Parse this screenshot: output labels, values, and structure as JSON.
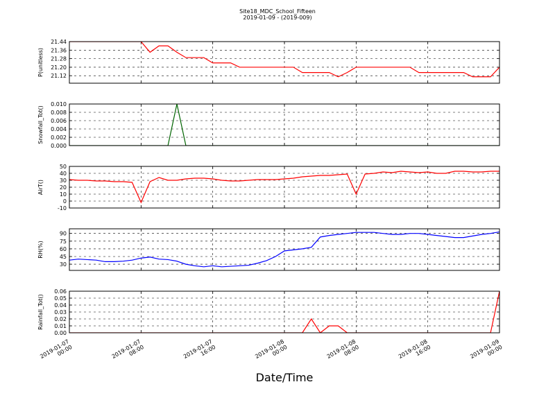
{
  "chart_data": [
    {
      "type": "line",
      "title": "Site18_MDC_School_Fifteen",
      "subtitle": "2019-01-09 - (2019-009)",
      "ylabel": "P(unitless)",
      "color": "#ff0000",
      "x": [
        "2019-01-07 00:00",
        "2019-01-07 01:00",
        "2019-01-07 02:00",
        "2019-01-07 03:00",
        "2019-01-07 04:00",
        "2019-01-07 05:00",
        "2019-01-07 06:00",
        "2019-01-07 07:00",
        "2019-01-07 08:00",
        "2019-01-07 09:00",
        "2019-01-07 10:00",
        "2019-01-07 11:00",
        "2019-01-07 12:00",
        "2019-01-07 13:00",
        "2019-01-07 14:00",
        "2019-01-07 15:00",
        "2019-01-07 16:00",
        "2019-01-07 17:00",
        "2019-01-07 18:00",
        "2019-01-07 19:00",
        "2019-01-07 20:00",
        "2019-01-07 21:00",
        "2019-01-07 22:00",
        "2019-01-07 23:00",
        "2019-01-08 00:00",
        "2019-01-08 01:00",
        "2019-01-08 02:00",
        "2019-01-08 03:00",
        "2019-01-08 04:00",
        "2019-01-08 05:00",
        "2019-01-08 06:00",
        "2019-01-08 07:00",
        "2019-01-08 08:00",
        "2019-01-08 09:00",
        "2019-01-08 10:00",
        "2019-01-08 11:00",
        "2019-01-08 12:00",
        "2019-01-08 13:00",
        "2019-01-08 14:00",
        "2019-01-08 15:00",
        "2019-01-08 16:00",
        "2019-01-08 17:00",
        "2019-01-08 18:00",
        "2019-01-08 19:00",
        "2019-01-08 20:00",
        "2019-01-08 21:00",
        "2019-01-08 22:00",
        "2019-01-08 23:00",
        "2019-01-09 00:00"
      ],
      "values": [
        21.44,
        21.44,
        21.44,
        21.44,
        21.44,
        21.44,
        21.44,
        21.44,
        21.44,
        21.34,
        21.4,
        21.4,
        21.34,
        21.29,
        21.29,
        21.29,
        21.24,
        21.24,
        21.24,
        21.2,
        21.2,
        21.2,
        21.2,
        21.2,
        21.2,
        21.2,
        21.15,
        21.15,
        21.15,
        21.15,
        21.11,
        21.15,
        21.2,
        21.2,
        21.2,
        21.2,
        21.2,
        21.2,
        21.2,
        21.15,
        21.15,
        21.15,
        21.15,
        21.15,
        21.15,
        21.11,
        21.11,
        21.11,
        21.2
      ],
      "ylim": [
        21.05,
        21.44
      ],
      "yticks": [
        21.12,
        {
          "value": 21.2,
          "label": "21.20"
        },
        21.28,
        21.36,
        21.44
      ],
      "grid": true
    },
    {
      "type": "line",
      "ylabel": "Snowfall_Tot()",
      "color": "#006400",
      "x": [
        "2019-01-07 00:00",
        "2019-01-07 01:00",
        "2019-01-07 02:00",
        "2019-01-07 03:00",
        "2019-01-07 04:00",
        "2019-01-07 05:00",
        "2019-01-07 06:00",
        "2019-01-07 07:00",
        "2019-01-07 08:00",
        "2019-01-07 09:00",
        "2019-01-07 10:00",
        "2019-01-07 11:00",
        "2019-01-07 12:00",
        "2019-01-07 13:00",
        "2019-01-07 14:00",
        "2019-01-07 15:00",
        "2019-01-07 16:00",
        "2019-01-07 17:00",
        "2019-01-07 18:00",
        "2019-01-07 19:00",
        "2019-01-07 20:00",
        "2019-01-07 21:00",
        "2019-01-07 22:00",
        "2019-01-07 23:00",
        "2019-01-08 00:00",
        "2019-01-08 01:00",
        "2019-01-08 02:00",
        "2019-01-08 03:00",
        "2019-01-08 04:00",
        "2019-01-08 05:00",
        "2019-01-08 06:00",
        "2019-01-08 07:00",
        "2019-01-08 08:00",
        "2019-01-08 09:00",
        "2019-01-08 10:00",
        "2019-01-08 11:00",
        "2019-01-08 12:00",
        "2019-01-08 13:00",
        "2019-01-08 14:00",
        "2019-01-08 15:00",
        "2019-01-08 16:00",
        "2019-01-08 17:00",
        "2019-01-08 18:00",
        "2019-01-08 19:00",
        "2019-01-08 20:00",
        "2019-01-08 21:00",
        "2019-01-08 22:00",
        "2019-01-08 23:00",
        "2019-01-09 00:00"
      ],
      "values": [
        0,
        0,
        0,
        0,
        0,
        0,
        0,
        0,
        0,
        0,
        0,
        0,
        0.01,
        0,
        0,
        0,
        0,
        0,
        0,
        0,
        0,
        0,
        0,
        0,
        0,
        0,
        0,
        0,
        0,
        0,
        0,
        0,
        0,
        0,
        0,
        0,
        0,
        0,
        0,
        0,
        0,
        0,
        0,
        0,
        0,
        0,
        0,
        0,
        0
      ],
      "ylim": [
        0,
        0.01
      ],
      "yticks": [
        {
          "value": 0,
          "label": "0.000"
        },
        0.002,
        0.004,
        0.006,
        0.008,
        {
          "value": 0.01,
          "label": "0.010"
        }
      ],
      "grid": true
    },
    {
      "type": "line",
      "ylabel": "AirT()",
      "color": "#ff0000",
      "x": [
        "2019-01-07 00:00",
        "2019-01-07 01:00",
        "2019-01-07 02:00",
        "2019-01-07 03:00",
        "2019-01-07 04:00",
        "2019-01-07 05:00",
        "2019-01-07 06:00",
        "2019-01-07 07:00",
        "2019-01-07 08:00",
        "2019-01-07 09:00",
        "2019-01-07 10:00",
        "2019-01-07 11:00",
        "2019-01-07 12:00",
        "2019-01-07 13:00",
        "2019-01-07 14:00",
        "2019-01-07 15:00",
        "2019-01-07 16:00",
        "2019-01-07 17:00",
        "2019-01-07 18:00",
        "2019-01-07 19:00",
        "2019-01-07 20:00",
        "2019-01-07 21:00",
        "2019-01-07 22:00",
        "2019-01-07 23:00",
        "2019-01-08 00:00",
        "2019-01-08 01:00",
        "2019-01-08 02:00",
        "2019-01-08 03:00",
        "2019-01-08 04:00",
        "2019-01-08 05:00",
        "2019-01-08 06:00",
        "2019-01-08 07:00",
        "2019-01-08 08:00",
        "2019-01-08 09:00",
        "2019-01-08 10:00",
        "2019-01-08 11:00",
        "2019-01-08 12:00",
        "2019-01-08 13:00",
        "2019-01-08 14:00",
        "2019-01-08 15:00",
        "2019-01-08 16:00",
        "2019-01-08 17:00",
        "2019-01-08 18:00",
        "2019-01-08 19:00",
        "2019-01-08 20:00",
        "2019-01-08 21:00",
        "2019-01-08 22:00",
        "2019-01-08 23:00",
        "2019-01-09 00:00"
      ],
      "values": [
        31,
        30,
        30,
        29,
        29,
        28,
        28,
        27,
        -2,
        28,
        34,
        30,
        30,
        32,
        33,
        33,
        32,
        30,
        29,
        29,
        30,
        31,
        31,
        31,
        32,
        33,
        35,
        36,
        37,
        37,
        38,
        39,
        10,
        39,
        40,
        42,
        41,
        43,
        42,
        41,
        42,
        40,
        40,
        43,
        43,
        42,
        42,
        43,
        43
      ],
      "ylim": [
        -10,
        50
      ],
      "yticks": [
        -10,
        0,
        10,
        20,
        30,
        40,
        50
      ],
      "grid": true
    },
    {
      "type": "line",
      "ylabel": "RH(%)",
      "color": "#0000ff",
      "x": [
        "2019-01-07 00:00",
        "2019-01-07 01:00",
        "2019-01-07 02:00",
        "2019-01-07 03:00",
        "2019-01-07 04:00",
        "2019-01-07 05:00",
        "2019-01-07 06:00",
        "2019-01-07 07:00",
        "2019-01-07 08:00",
        "2019-01-07 09:00",
        "2019-01-07 10:00",
        "2019-01-07 11:00",
        "2019-01-07 12:00",
        "2019-01-07 13:00",
        "2019-01-07 14:00",
        "2019-01-07 15:00",
        "2019-01-07 16:00",
        "2019-01-07 17:00",
        "2019-01-07 18:00",
        "2019-01-07 19:00",
        "2019-01-07 20:00",
        "2019-01-07 21:00",
        "2019-01-07 22:00",
        "2019-01-07 23:00",
        "2019-01-08 00:00",
        "2019-01-08 01:00",
        "2019-01-08 02:00",
        "2019-01-08 03:00",
        "2019-01-08 04:00",
        "2019-01-08 05:00",
        "2019-01-08 06:00",
        "2019-01-08 07:00",
        "2019-01-08 08:00",
        "2019-01-08 09:00",
        "2019-01-08 10:00",
        "2019-01-08 11:00",
        "2019-01-08 12:00",
        "2019-01-08 13:00",
        "2019-01-08 14:00",
        "2019-01-08 15:00",
        "2019-01-08 16:00",
        "2019-01-08 17:00",
        "2019-01-08 18:00",
        "2019-01-08 19:00",
        "2019-01-08 20:00",
        "2019-01-08 21:00",
        "2019-01-08 22:00",
        "2019-01-08 23:00",
        "2019-01-09 00:00"
      ],
      "values": [
        38,
        40,
        39,
        38,
        35,
        35,
        36,
        38,
        42,
        44,
        40,
        39,
        36,
        30,
        27,
        25,
        27,
        25,
        26,
        27,
        28,
        32,
        37,
        45,
        56,
        58,
        60,
        63,
        83,
        86,
        88,
        90,
        92,
        92,
        92,
        90,
        88,
        88,
        90,
        90,
        88,
        86,
        84,
        82,
        82,
        85,
        88,
        90,
        93
      ],
      "ylim": [
        18,
        99
      ],
      "yticks": [
        30,
        45,
        60,
        75,
        90
      ],
      "grid": true
    },
    {
      "type": "line",
      "ylabel": "Rainfall_Tot()",
      "xlabel": "Date/Time",
      "color": "#ff0000",
      "x": [
        "2019-01-07 00:00",
        "2019-01-07 01:00",
        "2019-01-07 02:00",
        "2019-01-07 03:00",
        "2019-01-07 04:00",
        "2019-01-07 05:00",
        "2019-01-07 06:00",
        "2019-01-07 07:00",
        "2019-01-07 08:00",
        "2019-01-07 09:00",
        "2019-01-07 10:00",
        "2019-01-07 11:00",
        "2019-01-07 12:00",
        "2019-01-07 13:00",
        "2019-01-07 14:00",
        "2019-01-07 15:00",
        "2019-01-07 16:00",
        "2019-01-07 17:00",
        "2019-01-07 18:00",
        "2019-01-07 19:00",
        "2019-01-07 20:00",
        "2019-01-07 21:00",
        "2019-01-07 22:00",
        "2019-01-07 23:00",
        "2019-01-08 00:00",
        "2019-01-08 01:00",
        "2019-01-08 02:00",
        "2019-01-08 03:00",
        "2019-01-08 04:00",
        "2019-01-08 05:00",
        "2019-01-08 06:00",
        "2019-01-08 07:00",
        "2019-01-08 08:00",
        "2019-01-08 09:00",
        "2019-01-08 10:00",
        "2019-01-08 11:00",
        "2019-01-08 12:00",
        "2019-01-08 13:00",
        "2019-01-08 14:00",
        "2019-01-08 15:00",
        "2019-01-08 16:00",
        "2019-01-08 17:00",
        "2019-01-08 18:00",
        "2019-01-08 19:00",
        "2019-01-08 20:00",
        "2019-01-08 21:00",
        "2019-01-08 22:00",
        "2019-01-08 23:00",
        "2019-01-09 00:00"
      ],
      "values": [
        0,
        0,
        0,
        0,
        0,
        0,
        0,
        0,
        0,
        0,
        0,
        0,
        0,
        0,
        0,
        0,
        0,
        0,
        0,
        0,
        0,
        0,
        0,
        0,
        0,
        0,
        0,
        0.02,
        0,
        0.01,
        0.01,
        0,
        0,
        0,
        0,
        0,
        0,
        0,
        0,
        0,
        0,
        0,
        0,
        0,
        0,
        0,
        0,
        0,
        0.06
      ],
      "ylim": [
        0,
        0.06
      ],
      "yticks": [
        {
          "value": 0,
          "label": "0.00"
        },
        0.01,
        0.02,
        0.03,
        0.04,
        0.05,
        0.06
      ],
      "grid": true,
      "xlim": [
        "2019-01-07 00:00",
        "2019-01-09 00:00"
      ],
      "xticks": [
        "2019-01-07 00:00",
        "2019-01-07 08:00",
        "2019-01-07 16:00",
        "2019-01-08 00:00",
        "2019-01-08 08:00",
        "2019-01-08 16:00",
        "2019-01-09 00:00"
      ]
    }
  ]
}
